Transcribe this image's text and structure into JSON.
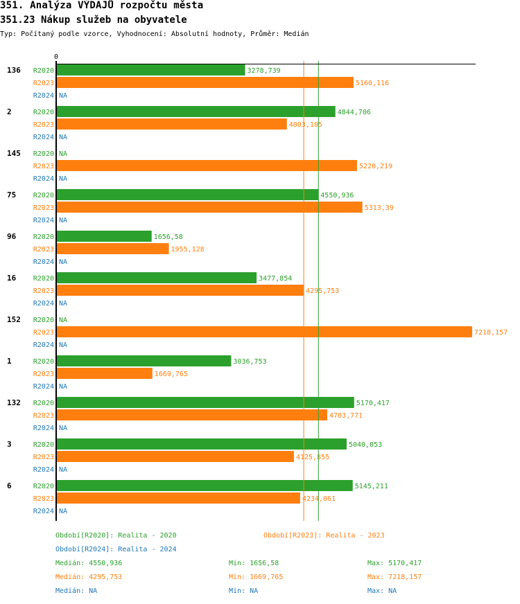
{
  "header": {
    "title": "351. Analýza VÝDAJŮ rozpočtu města",
    "subtitle": "351.23 Nákup služeb na obyvatele",
    "info": "Typ: Počítaný podle vzorce, Vyhodnocení: Absolutní hodnoty, Průměr: Medián"
  },
  "chart_data": {
    "type": "bar",
    "orientation": "horizontal",
    "axis_tick_label": "0",
    "categories": [
      "136",
      "2",
      "145",
      "75",
      "96",
      "16",
      "152",
      "1",
      "132",
      "3",
      "6"
    ],
    "series": [
      {
        "name": "R2020",
        "color": "#2ca02c",
        "values": [
          3278.739,
          4844.706,
          null,
          4550.936,
          1656.58,
          3477.854,
          null,
          3036.753,
          5170.417,
          5040.053,
          5145.211
        ],
        "labels": [
          "3278,739",
          "4844,706",
          "NA",
          "4550,936",
          "1656,58",
          "3477,854",
          "NA",
          "3036,753",
          "5170,417",
          "5040,053",
          "5145,211"
        ]
      },
      {
        "name": "R2023",
        "color": "#ff7f0e",
        "values": [
          5160.116,
          4003.105,
          5220.219,
          5313.39,
          1955.128,
          4295.753,
          7218.157,
          1669.765,
          4703.771,
          4125.855,
          4234.061
        ],
        "labels": [
          "5160,116",
          "4003,105",
          "5220,219",
          "5313,39",
          "1955,128",
          "4295,753",
          "7218,157",
          "1669,765",
          "4703,771",
          "4125,855",
          "4234,061"
        ]
      },
      {
        "name": "R2024",
        "color": "#1f77b4",
        "values": [
          null,
          null,
          null,
          null,
          null,
          null,
          null,
          null,
          null,
          null,
          null
        ],
        "labels": [
          "NA",
          "NA",
          "NA",
          "NA",
          "NA",
          "NA",
          "NA",
          "NA",
          "NA",
          "NA",
          "NA"
        ]
      }
    ],
    "xlim": [
      0,
      7218.157
    ],
    "median_lines": [
      {
        "series": "R2020",
        "value": 4550.936
      },
      {
        "series": "R2023",
        "value": 4295.753
      }
    ]
  },
  "legend": {
    "r2020": "Období[R2020]: Realita - 2020",
    "r2023": "Období[R2023]: Realita - 2023",
    "r2024": "Období[R2024]: Realita - 2024"
  },
  "stats": [
    {
      "median": "Medián: 4550,936",
      "min": "Min: 1656,58",
      "max": "Max: 5170,417",
      "color": "#2ca02c"
    },
    {
      "median": "Medián: 4295,753",
      "min": "Min: 1669,765",
      "max": "Max: 7218,157",
      "color": "#ff7f0e"
    },
    {
      "median": "Medián: NA",
      "min": "Min: NA",
      "max": "Max: NA",
      "color": "#1f77b4"
    }
  ]
}
